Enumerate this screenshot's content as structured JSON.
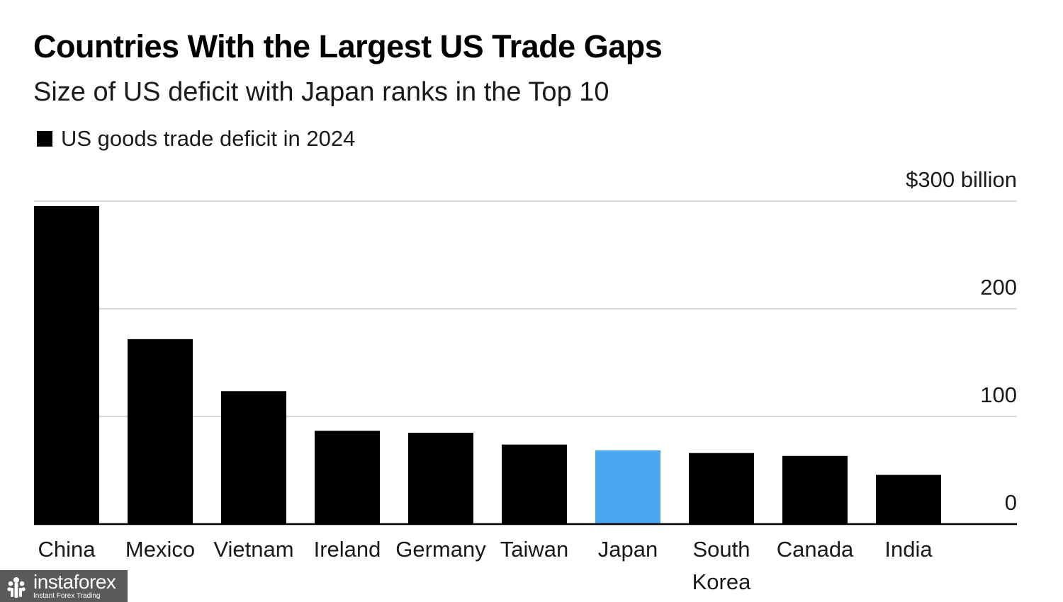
{
  "chart_data": {
    "type": "bar",
    "title": "Countries With the Largest US Trade Gaps",
    "subtitle": "Size of US deficit with Japan ranks in the Top 10",
    "legend": [
      "US goods trade deficit in 2024"
    ],
    "legend_position": "top-left",
    "categories": [
      "China",
      "Mexico",
      "Vietnam",
      "Ireland",
      "Germany",
      "Taiwan",
      "Japan",
      "South Korea",
      "Canada",
      "India"
    ],
    "category_lines": [
      [
        "China"
      ],
      [
        "Mexico"
      ],
      [
        "Vietnam"
      ],
      [
        "Ireland"
      ],
      [
        "Germany"
      ],
      [
        "Taiwan"
      ],
      [
        "Japan"
      ],
      [
        "South",
        "Korea"
      ],
      [
        "Canada"
      ],
      [
        "India"
      ]
    ],
    "values": [
      295.4,
      171.8,
      123.5,
      86.7,
      84.8,
      73.9,
      68.5,
      66.0,
      63.3,
      45.7
    ],
    "ylim": [
      0,
      300
    ],
    "y_ticks": [
      0,
      100,
      200,
      300
    ],
    "y_tick_labels": [
      "0",
      "100",
      "200",
      "$300 billion"
    ],
    "y_axis_side": "right",
    "grid": true,
    "bar_color": "#000000",
    "highlight": {
      "category": "Japan",
      "color": "#4aa8f0"
    },
    "xlabel": "",
    "ylabel": ""
  },
  "watermark": {
    "name": "instaforex",
    "tagline": "Instant Forex Trading"
  }
}
